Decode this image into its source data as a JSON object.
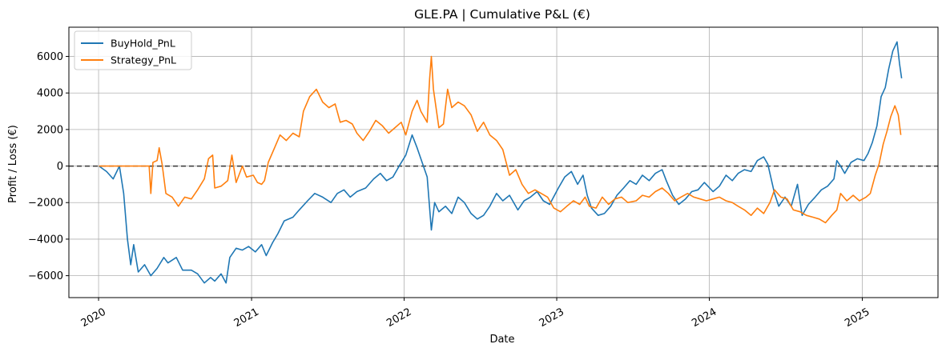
{
  "chart_data": {
    "type": "line",
    "title": "GLE.PA | Cumulative P&L (€)",
    "xlabel": "Date",
    "ylabel": "Profit / Loss (€)",
    "x_ticks": [
      "2020",
      "2021",
      "2022",
      "2023",
      "2024",
      "2025"
    ],
    "y_ticks": [
      6000,
      4000,
      2000,
      0,
      -2000,
      -4000,
      -6000
    ],
    "xlim": [
      "2019-10-22",
      "2025-07-01"
    ],
    "ylim": [
      -7200,
      7600
    ],
    "grid": true,
    "legend_position": "top-left",
    "reference_line": {
      "y": 0,
      "style": "dashed",
      "color": "#333333"
    },
    "series": [
      {
        "name": "BuyHold_PnL",
        "color": "#1f77b4",
        "points": [
          [
            "2020-01-02",
            0
          ],
          [
            "2020-01-20",
            -300
          ],
          [
            "2020-02-05",
            -700
          ],
          [
            "2020-02-20",
            0
          ],
          [
            "2020-03-01",
            -1500
          ],
          [
            "2020-03-10",
            -4000
          ],
          [
            "2020-03-18",
            -5400
          ],
          [
            "2020-03-25",
            -4300
          ],
          [
            "2020-04-05",
            -5800
          ],
          [
            "2020-04-20",
            -5400
          ],
          [
            "2020-05-05",
            -6000
          ],
          [
            "2020-05-20",
            -5600
          ],
          [
            "2020-06-05",
            -5000
          ],
          [
            "2020-06-15",
            -5300
          ],
          [
            "2020-07-05",
            -5000
          ],
          [
            "2020-07-20",
            -5700
          ],
          [
            "2020-08-10",
            -5700
          ],
          [
            "2020-08-25",
            -5900
          ],
          [
            "2020-09-10",
            -6400
          ],
          [
            "2020-09-25",
            -6100
          ],
          [
            "2020-10-05",
            -6300
          ],
          [
            "2020-10-20",
            -5900
          ],
          [
            "2020-11-01",
            -6400
          ],
          [
            "2020-11-10",
            -5000
          ],
          [
            "2020-11-25",
            -4500
          ],
          [
            "2020-12-10",
            -4600
          ],
          [
            "2020-12-25",
            -4400
          ],
          [
            "2021-01-10",
            -4700
          ],
          [
            "2021-01-25",
            -4300
          ],
          [
            "2021-02-05",
            -4900
          ],
          [
            "2021-02-20",
            -4200
          ],
          [
            "2021-03-05",
            -3700
          ],
          [
            "2021-03-20",
            -3000
          ],
          [
            "2021-04-10",
            -2800
          ],
          [
            "2021-04-25",
            -2400
          ],
          [
            "2021-05-15",
            -1900
          ],
          [
            "2021-06-01",
            -1500
          ],
          [
            "2021-06-20",
            -1700
          ],
          [
            "2021-07-10",
            -2000
          ],
          [
            "2021-07-25",
            -1500
          ],
          [
            "2021-08-10",
            -1300
          ],
          [
            "2021-08-25",
            -1700
          ],
          [
            "2021-09-10",
            -1400
          ],
          [
            "2021-10-01",
            -1200
          ],
          [
            "2021-10-20",
            -700
          ],
          [
            "2021-11-05",
            -400
          ],
          [
            "2021-11-20",
            -800
          ],
          [
            "2021-12-05",
            -600
          ],
          [
            "2021-12-20",
            0
          ],
          [
            "2022-01-05",
            600
          ],
          [
            "2022-01-20",
            1700
          ],
          [
            "2022-02-01",
            1000
          ],
          [
            "2022-02-10",
            400
          ],
          [
            "2022-02-25",
            -600
          ],
          [
            "2022-03-07",
            -3500
          ],
          [
            "2022-03-15",
            -2000
          ],
          [
            "2022-03-25",
            -2500
          ],
          [
            "2022-04-10",
            -2200
          ],
          [
            "2022-04-25",
            -2600
          ],
          [
            "2022-05-10",
            -1700
          ],
          [
            "2022-05-25",
            -2000
          ],
          [
            "2022-06-10",
            -2600
          ],
          [
            "2022-06-25",
            -2900
          ],
          [
            "2022-07-10",
            -2700
          ],
          [
            "2022-07-25",
            -2200
          ],
          [
            "2022-08-10",
            -1500
          ],
          [
            "2022-08-25",
            -1900
          ],
          [
            "2022-09-10",
            -1600
          ],
          [
            "2022-09-30",
            -2400
          ],
          [
            "2022-10-15",
            -1900
          ],
          [
            "2022-10-30",
            -1700
          ],
          [
            "2022-11-15",
            -1400
          ],
          [
            "2022-11-30",
            -1900
          ],
          [
            "2022-12-15",
            -2100
          ],
          [
            "2023-01-05",
            -1200
          ],
          [
            "2023-01-20",
            -600
          ],
          [
            "2023-02-05",
            -300
          ],
          [
            "2023-02-20",
            -1000
          ],
          [
            "2023-03-05",
            -500
          ],
          [
            "2023-03-15",
            -1600
          ],
          [
            "2023-03-25",
            -2300
          ],
          [
            "2023-04-10",
            -2700
          ],
          [
            "2023-04-25",
            -2600
          ],
          [
            "2023-05-10",
            -2200
          ],
          [
            "2023-05-25",
            -1600
          ],
          [
            "2023-06-10",
            -1200
          ],
          [
            "2023-06-25",
            -800
          ],
          [
            "2023-07-10",
            -1000
          ],
          [
            "2023-07-25",
            -500
          ],
          [
            "2023-08-10",
            -800
          ],
          [
            "2023-08-25",
            -400
          ],
          [
            "2023-09-10",
            -200
          ],
          [
            "2023-09-20",
            -800
          ],
          [
            "2023-10-05",
            -1600
          ],
          [
            "2023-10-20",
            -2100
          ],
          [
            "2023-11-05",
            -1800
          ],
          [
            "2023-11-20",
            -1400
          ],
          [
            "2023-12-05",
            -1300
          ],
          [
            "2023-12-20",
            -900
          ],
          [
            "2024-01-10",
            -1400
          ],
          [
            "2024-01-25",
            -1100
          ],
          [
            "2024-02-10",
            -500
          ],
          [
            "2024-02-25",
            -800
          ],
          [
            "2024-03-10",
            -400
          ],
          [
            "2024-03-25",
            -200
          ],
          [
            "2024-04-10",
            -300
          ],
          [
            "2024-04-25",
            300
          ],
          [
            "2024-05-10",
            500
          ],
          [
            "2024-05-20",
            100
          ],
          [
            "2024-06-05",
            -1500
          ],
          [
            "2024-06-15",
            -2200
          ],
          [
            "2024-06-30",
            -1700
          ],
          [
            "2024-07-15",
            -2200
          ],
          [
            "2024-07-30",
            -1000
          ],
          [
            "2024-08-10",
            -2700
          ],
          [
            "2024-08-25",
            -2100
          ],
          [
            "2024-09-10",
            -1700
          ],
          [
            "2024-09-25",
            -1300
          ],
          [
            "2024-10-10",
            -1100
          ],
          [
            "2024-10-25",
            -700
          ],
          [
            "2024-11-01",
            300
          ],
          [
            "2024-11-10",
            0
          ],
          [
            "2024-11-20",
            -400
          ],
          [
            "2024-12-05",
            200
          ],
          [
            "2024-12-20",
            400
          ],
          [
            "2025-01-05",
            300
          ],
          [
            "2025-01-15",
            700
          ],
          [
            "2025-01-25",
            1300
          ],
          [
            "2025-02-05",
            2200
          ],
          [
            "2025-02-15",
            3800
          ],
          [
            "2025-02-25",
            4300
          ],
          [
            "2025-03-05",
            5300
          ],
          [
            "2025-03-15",
            6300
          ],
          [
            "2025-03-25",
            6800
          ],
          [
            "2025-03-31",
            5600
          ],
          [
            "2025-04-05",
            4800
          ]
        ]
      },
      {
        "name": "Strategy_PnL",
        "color": "#ff7f0e",
        "points": [
          [
            "2020-01-02",
            0
          ],
          [
            "2020-03-01",
            0
          ],
          [
            "2020-05-01",
            0
          ],
          [
            "2020-05-05",
            -1500
          ],
          [
            "2020-05-10",
            200
          ],
          [
            "2020-05-20",
            300
          ],
          [
            "2020-05-25",
            1000
          ],
          [
            "2020-06-01",
            100
          ],
          [
            "2020-06-10",
            -1500
          ],
          [
            "2020-06-25",
            -1700
          ],
          [
            "2020-07-10",
            -2200
          ],
          [
            "2020-07-25",
            -1700
          ],
          [
            "2020-08-10",
            -1800
          ],
          [
            "2020-08-25",
            -1300
          ],
          [
            "2020-09-10",
            -700
          ],
          [
            "2020-09-20",
            400
          ],
          [
            "2020-09-30",
            600
          ],
          [
            "2020-10-05",
            -1200
          ],
          [
            "2020-10-20",
            -1100
          ],
          [
            "2020-11-05",
            -800
          ],
          [
            "2020-11-15",
            600
          ],
          [
            "2020-11-25",
            -900
          ],
          [
            "2020-12-10",
            0
          ],
          [
            "2020-12-20",
            -600
          ],
          [
            "2021-01-05",
            -500
          ],
          [
            "2021-01-15",
            -900
          ],
          [
            "2021-01-25",
            -1000
          ],
          [
            "2021-02-01",
            -800
          ],
          [
            "2021-02-10",
            200
          ],
          [
            "2021-02-25",
            1000
          ],
          [
            "2021-03-10",
            1700
          ],
          [
            "2021-03-25",
            1400
          ],
          [
            "2021-04-10",
            1800
          ],
          [
            "2021-04-25",
            1600
          ],
          [
            "2021-05-05",
            3000
          ],
          [
            "2021-05-20",
            3800
          ],
          [
            "2021-06-05",
            4200
          ],
          [
            "2021-06-20",
            3500
          ],
          [
            "2021-07-05",
            3200
          ],
          [
            "2021-07-20",
            3400
          ],
          [
            "2021-08-01",
            2400
          ],
          [
            "2021-08-15",
            2500
          ],
          [
            "2021-08-30",
            2300
          ],
          [
            "2021-09-10",
            1800
          ],
          [
            "2021-09-25",
            1400
          ],
          [
            "2021-10-10",
            1900
          ],
          [
            "2021-10-25",
            2500
          ],
          [
            "2021-11-10",
            2200
          ],
          [
            "2021-11-25",
            1800
          ],
          [
            "2021-12-10",
            2100
          ],
          [
            "2021-12-25",
            2400
          ],
          [
            "2022-01-05",
            1700
          ],
          [
            "2022-01-20",
            3000
          ],
          [
            "2022-02-01",
            3600
          ],
          [
            "2022-02-10",
            3000
          ],
          [
            "2022-02-25",
            2400
          ],
          [
            "2022-03-03",
            4800
          ],
          [
            "2022-03-07",
            6000
          ],
          [
            "2022-03-12",
            4200
          ],
          [
            "2022-03-25",
            2100
          ],
          [
            "2022-04-05",
            2300
          ],
          [
            "2022-04-15",
            4200
          ],
          [
            "2022-04-25",
            3200
          ],
          [
            "2022-05-10",
            3500
          ],
          [
            "2022-05-25",
            3300
          ],
          [
            "2022-06-10",
            2800
          ],
          [
            "2022-06-25",
            1900
          ],
          [
            "2022-07-10",
            2400
          ],
          [
            "2022-07-25",
            1700
          ],
          [
            "2022-08-10",
            1400
          ],
          [
            "2022-08-25",
            900
          ],
          [
            "2022-09-10",
            -500
          ],
          [
            "2022-09-25",
            -200
          ],
          [
            "2022-10-10",
            -1000
          ],
          [
            "2022-10-25",
            -1500
          ],
          [
            "2022-11-10",
            -1300
          ],
          [
            "2022-11-25",
            -1500
          ],
          [
            "2022-12-10",
            -1700
          ],
          [
            "2022-12-25",
            -2300
          ],
          [
            "2023-01-10",
            -2500
          ],
          [
            "2023-01-25",
            -2200
          ],
          [
            "2023-02-10",
            -1900
          ],
          [
            "2023-02-25",
            -2100
          ],
          [
            "2023-03-10",
            -1700
          ],
          [
            "2023-03-20",
            -2200
          ],
          [
            "2023-04-05",
            -2300
          ],
          [
            "2023-04-20",
            -1700
          ],
          [
            "2023-05-05",
            -2100
          ],
          [
            "2023-05-20",
            -1800
          ],
          [
            "2023-06-05",
            -1700
          ],
          [
            "2023-06-20",
            -2000
          ],
          [
            "2023-07-10",
            -1900
          ],
          [
            "2023-07-25",
            -1600
          ],
          [
            "2023-08-10",
            -1700
          ],
          [
            "2023-08-25",
            -1400
          ],
          [
            "2023-09-10",
            -1200
          ],
          [
            "2023-09-25",
            -1500
          ],
          [
            "2023-10-10",
            -1900
          ],
          [
            "2023-10-25",
            -1700
          ],
          [
            "2023-11-10",
            -1500
          ],
          [
            "2023-11-25",
            -1700
          ],
          [
            "2023-12-10",
            -1800
          ],
          [
            "2023-12-25",
            -1900
          ],
          [
            "2024-01-10",
            -1800
          ],
          [
            "2024-01-25",
            -1700
          ],
          [
            "2024-02-10",
            -1900
          ],
          [
            "2024-02-25",
            -2000
          ],
          [
            "2024-03-10",
            -2200
          ],
          [
            "2024-03-25",
            -2400
          ],
          [
            "2024-04-10",
            -2700
          ],
          [
            "2024-04-25",
            -2300
          ],
          [
            "2024-05-10",
            -2600
          ],
          [
            "2024-05-25",
            -2000
          ],
          [
            "2024-06-05",
            -1300
          ],
          [
            "2024-06-20",
            -1700
          ],
          [
            "2024-07-05",
            -1800
          ],
          [
            "2024-07-20",
            -2400
          ],
          [
            "2024-08-05",
            -2500
          ],
          [
            "2024-08-20",
            -2700
          ],
          [
            "2024-09-05",
            -2800
          ],
          [
            "2024-09-20",
            -2900
          ],
          [
            "2024-10-05",
            -3100
          ],
          [
            "2024-10-20",
            -2700
          ],
          [
            "2024-11-01",
            -2400
          ],
          [
            "2024-11-10",
            -1500
          ],
          [
            "2024-11-25",
            -1900
          ],
          [
            "2024-12-10",
            -1600
          ],
          [
            "2024-12-25",
            -1900
          ],
          [
            "2025-01-10",
            -1700
          ],
          [
            "2025-01-20",
            -1500
          ],
          [
            "2025-02-01",
            -500
          ],
          [
            "2025-02-10",
            100
          ],
          [
            "2025-02-20",
            1200
          ],
          [
            "2025-03-01",
            1900
          ],
          [
            "2025-03-10",
            2700
          ],
          [
            "2025-03-20",
            3300
          ],
          [
            "2025-03-28",
            2800
          ],
          [
            "2025-04-03",
            1700
          ]
        ]
      }
    ]
  }
}
